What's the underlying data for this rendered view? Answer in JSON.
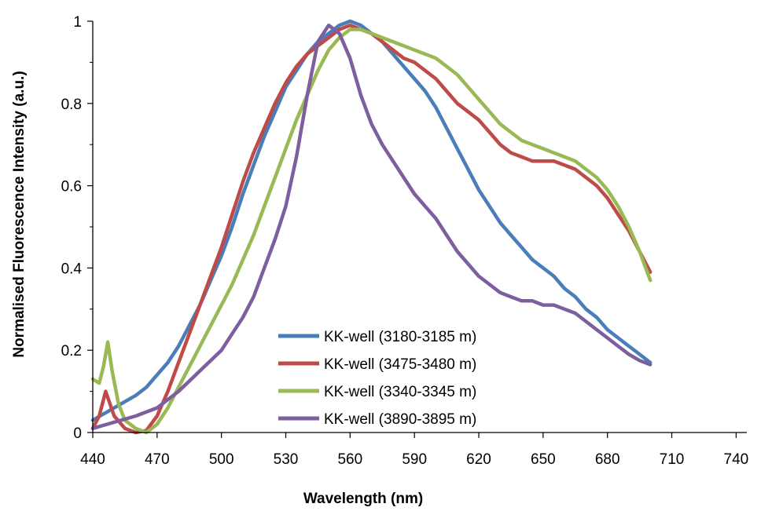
{
  "chart_data": {
    "type": "line",
    "title": "",
    "xlabel": "Wavelength (nm)",
    "ylabel": "Normalised Fluorescence Intensity (a.u.)",
    "xlim": [
      440,
      745
    ],
    "ylim": [
      0,
      1
    ],
    "x_ticks": [
      "440",
      "470",
      "500",
      "530",
      "560",
      "590",
      "620",
      "650",
      "680",
      "710",
      "740"
    ],
    "y_ticks": [
      "0",
      "0.2",
      "0.4",
      "0.6",
      "0.8",
      "1"
    ],
    "grid": false,
    "legend_position": "bottom-center",
    "series": [
      {
        "name": "KK-well (3180-3185 m)",
        "color": "#4a7ebb",
        "points": [
          [
            440,
            0.03
          ],
          [
            445,
            0.045
          ],
          [
            450,
            0.06
          ],
          [
            455,
            0.075
          ],
          [
            460,
            0.09
          ],
          [
            465,
            0.11
          ],
          [
            470,
            0.14
          ],
          [
            475,
            0.17
          ],
          [
            480,
            0.21
          ],
          [
            485,
            0.26
          ],
          [
            490,
            0.31
          ],
          [
            495,
            0.37
          ],
          [
            500,
            0.43
          ],
          [
            505,
            0.5
          ],
          [
            510,
            0.58
          ],
          [
            515,
            0.65
          ],
          [
            520,
            0.72
          ],
          [
            525,
            0.78
          ],
          [
            530,
            0.84
          ],
          [
            535,
            0.88
          ],
          [
            540,
            0.92
          ],
          [
            545,
            0.95
          ],
          [
            550,
            0.97
          ],
          [
            555,
            0.99
          ],
          [
            560,
            1.0
          ],
          [
            565,
            0.99
          ],
          [
            570,
            0.97
          ],
          [
            575,
            0.95
          ],
          [
            580,
            0.92
          ],
          [
            585,
            0.89
          ],
          [
            590,
            0.86
          ],
          [
            595,
            0.83
          ],
          [
            600,
            0.79
          ],
          [
            605,
            0.74
          ],
          [
            610,
            0.69
          ],
          [
            615,
            0.64
          ],
          [
            620,
            0.59
          ],
          [
            625,
            0.55
          ],
          [
            630,
            0.51
          ],
          [
            635,
            0.48
          ],
          [
            640,
            0.45
          ],
          [
            645,
            0.42
          ],
          [
            650,
            0.4
          ],
          [
            655,
            0.38
          ],
          [
            660,
            0.35
          ],
          [
            665,
            0.33
          ],
          [
            670,
            0.3
          ],
          [
            675,
            0.28
          ],
          [
            680,
            0.25
          ],
          [
            685,
            0.23
          ],
          [
            690,
            0.21
          ],
          [
            695,
            0.19
          ],
          [
            700,
            0.17
          ]
        ]
      },
      {
        "name": "KK-well (3475-3480 m)",
        "color": "#be4b48",
        "points": [
          [
            440,
            0.01
          ],
          [
            443,
            0.04
          ],
          [
            446,
            0.1
          ],
          [
            448,
            0.07
          ],
          [
            450,
            0.04
          ],
          [
            455,
            0.01
          ],
          [
            460,
            0.0
          ],
          [
            465,
            0.005
          ],
          [
            470,
            0.04
          ],
          [
            475,
            0.1
          ],
          [
            480,
            0.17
          ],
          [
            485,
            0.24
          ],
          [
            490,
            0.31
          ],
          [
            495,
            0.38
          ],
          [
            500,
            0.45
          ],
          [
            505,
            0.53
          ],
          [
            510,
            0.61
          ],
          [
            515,
            0.68
          ],
          [
            520,
            0.74
          ],
          [
            525,
            0.8
          ],
          [
            530,
            0.85
          ],
          [
            535,
            0.89
          ],
          [
            540,
            0.92
          ],
          [
            545,
            0.94
          ],
          [
            550,
            0.96
          ],
          [
            555,
            0.98
          ],
          [
            560,
            0.99
          ],
          [
            565,
            0.98
          ],
          [
            570,
            0.97
          ],
          [
            575,
            0.95
          ],
          [
            580,
            0.93
          ],
          [
            585,
            0.91
          ],
          [
            590,
            0.9
          ],
          [
            595,
            0.88
          ],
          [
            600,
            0.86
          ],
          [
            605,
            0.83
          ],
          [
            610,
            0.8
          ],
          [
            615,
            0.78
          ],
          [
            620,
            0.76
          ],
          [
            625,
            0.73
          ],
          [
            630,
            0.7
          ],
          [
            635,
            0.68
          ],
          [
            640,
            0.67
          ],
          [
            645,
            0.66
          ],
          [
            650,
            0.66
          ],
          [
            655,
            0.66
          ],
          [
            660,
            0.65
          ],
          [
            665,
            0.64
          ],
          [
            670,
            0.62
          ],
          [
            675,
            0.6
          ],
          [
            680,
            0.57
          ],
          [
            685,
            0.53
          ],
          [
            690,
            0.49
          ],
          [
            695,
            0.44
          ],
          [
            700,
            0.39
          ]
        ]
      },
      {
        "name": "KK-well (3340-3345 m)",
        "color": "#98b954",
        "points": [
          [
            440,
            0.13
          ],
          [
            443,
            0.12
          ],
          [
            445,
            0.16
          ],
          [
            447,
            0.22
          ],
          [
            449,
            0.15
          ],
          [
            452,
            0.07
          ],
          [
            455,
            0.03
          ],
          [
            460,
            0.01
          ],
          [
            465,
            0.0
          ],
          [
            470,
            0.02
          ],
          [
            475,
            0.06
          ],
          [
            480,
            0.11
          ],
          [
            485,
            0.16
          ],
          [
            490,
            0.21
          ],
          [
            495,
            0.26
          ],
          [
            500,
            0.31
          ],
          [
            505,
            0.36
          ],
          [
            510,
            0.42
          ],
          [
            515,
            0.48
          ],
          [
            520,
            0.55
          ],
          [
            525,
            0.62
          ],
          [
            530,
            0.69
          ],
          [
            535,
            0.76
          ],
          [
            540,
            0.82
          ],
          [
            545,
            0.88
          ],
          [
            550,
            0.93
          ],
          [
            555,
            0.96
          ],
          [
            560,
            0.98
          ],
          [
            565,
            0.98
          ],
          [
            570,
            0.97
          ],
          [
            575,
            0.96
          ],
          [
            580,
            0.95
          ],
          [
            585,
            0.94
          ],
          [
            590,
            0.93
          ],
          [
            595,
            0.92
          ],
          [
            600,
            0.91
          ],
          [
            605,
            0.89
          ],
          [
            610,
            0.87
          ],
          [
            615,
            0.84
          ],
          [
            620,
            0.81
          ],
          [
            625,
            0.78
          ],
          [
            630,
            0.75
          ],
          [
            635,
            0.73
          ],
          [
            640,
            0.71
          ],
          [
            645,
            0.7
          ],
          [
            650,
            0.69
          ],
          [
            655,
            0.68
          ],
          [
            660,
            0.67
          ],
          [
            665,
            0.66
          ],
          [
            670,
            0.64
          ],
          [
            675,
            0.62
          ],
          [
            680,
            0.59
          ],
          [
            685,
            0.55
          ],
          [
            690,
            0.5
          ],
          [
            695,
            0.44
          ],
          [
            700,
            0.37
          ]
        ]
      },
      {
        "name": "KK-well (3890-3895 m)",
        "color": "#7d5fa0",
        "points": [
          [
            440,
            0.01
          ],
          [
            450,
            0.025
          ],
          [
            460,
            0.04
          ],
          [
            470,
            0.06
          ],
          [
            480,
            0.1
          ],
          [
            490,
            0.15
          ],
          [
            500,
            0.2
          ],
          [
            505,
            0.24
          ],
          [
            510,
            0.28
          ],
          [
            515,
            0.33
          ],
          [
            520,
            0.4
          ],
          [
            525,
            0.47
          ],
          [
            530,
            0.55
          ],
          [
            535,
            0.67
          ],
          [
            540,
            0.82
          ],
          [
            545,
            0.95
          ],
          [
            550,
            0.99
          ],
          [
            555,
            0.97
          ],
          [
            560,
            0.91
          ],
          [
            565,
            0.82
          ],
          [
            570,
            0.75
          ],
          [
            575,
            0.7
          ],
          [
            580,
            0.66
          ],
          [
            585,
            0.62
          ],
          [
            590,
            0.58
          ],
          [
            595,
            0.55
          ],
          [
            600,
            0.52
          ],
          [
            605,
            0.48
          ],
          [
            610,
            0.44
          ],
          [
            615,
            0.41
          ],
          [
            620,
            0.38
          ],
          [
            625,
            0.36
          ],
          [
            630,
            0.34
          ],
          [
            635,
            0.33
          ],
          [
            640,
            0.32
          ],
          [
            645,
            0.32
          ],
          [
            650,
            0.31
          ],
          [
            655,
            0.31
          ],
          [
            660,
            0.3
          ],
          [
            665,
            0.29
          ],
          [
            670,
            0.27
          ],
          [
            675,
            0.25
          ],
          [
            680,
            0.23
          ],
          [
            685,
            0.21
          ],
          [
            690,
            0.19
          ],
          [
            695,
            0.175
          ],
          [
            700,
            0.165
          ]
        ]
      }
    ]
  }
}
